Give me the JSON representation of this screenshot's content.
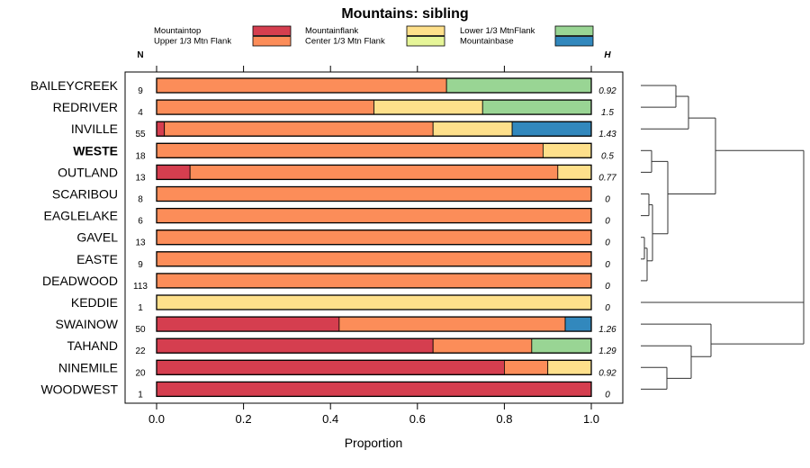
{
  "chart_data": {
    "type": "bar",
    "orientation": "horizontal",
    "stacked": true,
    "title": "Mountains: sibling",
    "xlabel": "Proportion",
    "xlim": [
      0,
      1
    ],
    "xticks": [
      "0.0",
      "0.2",
      "0.4",
      "0.6",
      "0.8",
      "1.0"
    ],
    "xtick_values": [
      0,
      0.2,
      0.4,
      0.6,
      0.8,
      1.0
    ],
    "n_header": "N",
    "h_header": "H",
    "bold_category": "WESTE",
    "legend": [
      {
        "name": "Mountaintop",
        "color": "#d53e4f"
      },
      {
        "name": "Upper 1/3 Mtn Flank",
        "color": "#fc8d59"
      },
      {
        "name": "Mountainflank",
        "color": "#fee08b"
      },
      {
        "name": "Center 1/3 Mtn Flank",
        "color": "#e6f598"
      },
      {
        "name": "Lower 1/3 MtnFlank",
        "color": "#99d594"
      },
      {
        "name": "Mountainbase",
        "color": "#3288bd"
      }
    ],
    "rows": [
      {
        "label": "BAILEYCREEK",
        "n": "9",
        "h": "0.92",
        "values": [
          0,
          0.667,
          0,
          0,
          0.333,
          0
        ]
      },
      {
        "label": "REDRIVER",
        "n": "4",
        "h": "1.5",
        "values": [
          0,
          0.5,
          0.25,
          0,
          0.25,
          0
        ]
      },
      {
        "label": "INVILLE",
        "n": "55",
        "h": "1.43",
        "values": [
          0.018,
          0.618,
          0.182,
          0,
          0,
          0.182
        ]
      },
      {
        "label": "WESTE",
        "n": "18",
        "h": "0.5",
        "values": [
          0,
          0.889,
          0.111,
          0,
          0,
          0
        ]
      },
      {
        "label": "OUTLAND",
        "n": "13",
        "h": "0.77",
        "values": [
          0.077,
          0.846,
          0.077,
          0,
          0,
          0
        ]
      },
      {
        "label": "SCARIBOU",
        "n": "8",
        "h": "0",
        "values": [
          0,
          1,
          0,
          0,
          0,
          0
        ]
      },
      {
        "label": "EAGLELAKE",
        "n": "6",
        "h": "0",
        "values": [
          0,
          1,
          0,
          0,
          0,
          0
        ]
      },
      {
        "label": "GAVEL",
        "n": "13",
        "h": "0",
        "values": [
          0,
          1,
          0,
          0,
          0,
          0
        ]
      },
      {
        "label": "EASTE",
        "n": "9",
        "h": "0",
        "values": [
          0,
          1,
          0,
          0,
          0,
          0
        ]
      },
      {
        "label": "DEADWOOD",
        "n": "113",
        "h": "0",
        "values": [
          0,
          1,
          0,
          0,
          0,
          0
        ]
      },
      {
        "label": "KEDDIE",
        "n": "1",
        "h": "0",
        "values": [
          0,
          0,
          1,
          0,
          0,
          0
        ]
      },
      {
        "label": "SWAINOW",
        "n": "50",
        "h": "1.26",
        "values": [
          0.42,
          0.52,
          0,
          0,
          0,
          0.06
        ]
      },
      {
        "label": "TAHAND",
        "n": "22",
        "h": "1.29",
        "values": [
          0.636,
          0.227,
          0,
          0,
          0.137,
          0
        ]
      },
      {
        "label": "NINEMILE",
        "n": "20",
        "h": "0.92",
        "values": [
          0.8,
          0.1,
          0.1,
          0,
          0,
          0
        ]
      },
      {
        "label": "WOODWEST",
        "n": "1",
        "h": "0",
        "values": [
          1,
          0,
          0,
          0,
          0,
          0
        ]
      }
    ],
    "dendrogram": {
      "groups": [
        [
          0,
          1
        ],
        [
          3,
          4
        ],
        [
          5,
          6,
          7,
          8,
          9
        ],
        [
          13,
          14
        ],
        [
          12,
          13,
          14
        ],
        [
          11,
          12,
          13,
          14
        ]
      ],
      "note": "hierarchical clustering tree drawn at right"
    }
  }
}
